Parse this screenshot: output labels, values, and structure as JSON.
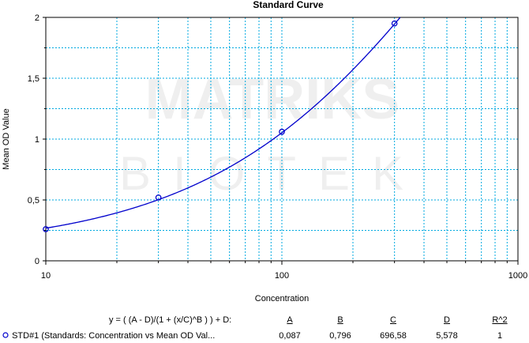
{
  "chart_data": {
    "type": "scatter",
    "title": "Standard Curve",
    "xlabel": "Concentration",
    "ylabel": "Mean OD Value",
    "xscale": "log",
    "xlim": [
      10,
      1000
    ],
    "ylim": [
      0,
      2
    ],
    "grid": true,
    "x_ticks": [
      "10",
      "100",
      "1000"
    ],
    "y_ticks": [
      "0",
      "0,5",
      "1",
      "1,5",
      "2"
    ],
    "series": [
      {
        "name": "STD#1 (Standards: Concentration vs Mean OD Val...",
        "x": [
          10,
          30,
          100,
          300
        ],
        "y": [
          0.26,
          0.52,
          1.06,
          1.95
        ],
        "color": "#0000cc",
        "marker": "circle"
      }
    ],
    "fit": {
      "equation": "y = ( (A - D)/(1 + (x/C)^B ) ) + D:",
      "params": {
        "A": 0.087,
        "B": 0.796,
        "C": 696.58,
        "D": 5.578
      },
      "line_color": "#0000cc"
    },
    "fit_table": {
      "headers": [
        "A",
        "B",
        "C",
        "D",
        "R^2"
      ],
      "values": [
        "0,087",
        "0,796",
        "696,58",
        "5,578",
        "1"
      ]
    },
    "watermark": "MATRIKS BIOTEK",
    "grid_color": "#00a9e0"
  }
}
